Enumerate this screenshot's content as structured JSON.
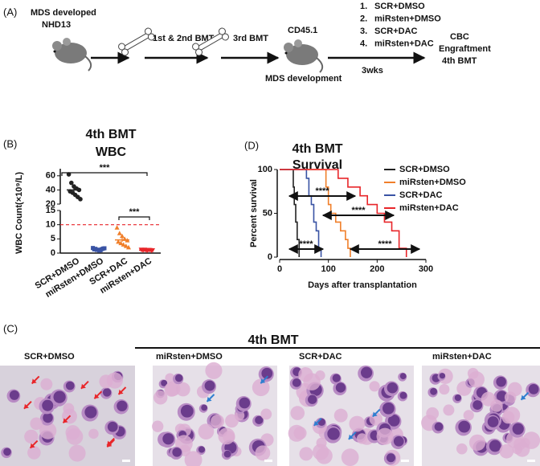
{
  "panel_a": {
    "label": "(A)",
    "donor": [
      "MDS developed",
      "NHD13"
    ],
    "step1": "1st & 2nd BMT",
    "step2": "3rd BMT",
    "recipient": "CD45.1",
    "recipient_note": "MDS development",
    "treatments": [
      {
        "number": "1.",
        "name": "SCR+DMSO"
      },
      {
        "number": "2.",
        "name": "miRsten+DMSO"
      },
      {
        "number": "3.",
        "name": "SCR+DAC"
      },
      {
        "number": "4.",
        "name": "miRsten+DAC"
      }
    ],
    "duration": "3wks",
    "readouts": [
      "CBC",
      "Engraftment",
      "4th BMT"
    ]
  },
  "chart_data": [
    {
      "type": "dot",
      "label": "(B)",
      "title": "4th BMT",
      "subtitle": "WBC",
      "y_label": "WBC Count(×10⁹/L)",
      "categories": [
        "SCR+DMSO",
        "miRsten+DMSO",
        "SCR+DAC",
        "miRsten+DAC"
      ],
      "colors": [
        "#222222",
        "#3953a4",
        "#f07f2a",
        "#e8262a"
      ],
      "values": [
        [
          62,
          50,
          45,
          42,
          40,
          38,
          36,
          33,
          30,
          27
        ],
        [
          1.8,
          1.5,
          1.2,
          1.0,
          1.6,
          1.3,
          1.1,
          0.9,
          1.4,
          1.7
        ],
        [
          9,
          7,
          6,
          5,
          4.5,
          4,
          3.5,
          3,
          2.5,
          2
        ],
        [
          1.2,
          1.0,
          0.9,
          1.1,
          0.8,
          1.0,
          1.2,
          0.9,
          1.1,
          1.0
        ]
      ],
      "means": [
        40,
        1.35,
        4.65,
        1.02
      ],
      "sems": [
        3.3,
        0.1,
        0.7,
        0.05
      ],
      "ylim_lower": [
        0,
        15
      ],
      "ylim_upper": [
        20,
        70
      ],
      "yticks": [
        0,
        5,
        10,
        15,
        20,
        40,
        60
      ],
      "threshold": 10,
      "threshold_color": "#e8262a",
      "annotations": [
        "***",
        "***"
      ]
    },
    {
      "type": "survival",
      "label": "(D)",
      "title": "4th BMT",
      "subtitle": "Survival",
      "x_label": "Days after transplantation",
      "y_label": "Percent survival",
      "xlim": [
        0,
        300
      ],
      "xticks": [
        0,
        100,
        200,
        300
      ],
      "ylim": [
        0,
        100
      ],
      "yticks": [
        0,
        50,
        100
      ],
      "legend": "upper right",
      "series": [
        {
          "name": "SCR+DMSO",
          "color": "#222222",
          "x": [
            0,
            28,
            30,
            33,
            36,
            40
          ],
          "values": [
            100,
            80,
            60,
            40,
            20,
            0
          ]
        },
        {
          "name": "miRsten+DMSO",
          "color": "#f07f2a",
          "x": [
            0,
            95,
            100,
            105,
            115,
            125,
            135,
            140,
            145
          ],
          "values": [
            100,
            80,
            60,
            50,
            40,
            30,
            20,
            10,
            0
          ]
        },
        {
          "name": "SCR+DAC",
          "color": "#3953a4",
          "x": [
            0,
            55,
            60,
            65,
            70,
            75,
            80,
            85
          ],
          "values": [
            100,
            90,
            70,
            60,
            40,
            30,
            10,
            0
          ]
        },
        {
          "name": "miRsten+DAC",
          "color": "#e8262a",
          "x": [
            0,
            120,
            140,
            165,
            180,
            200,
            215,
            230,
            245,
            260
          ],
          "values": [
            100,
            90,
            80,
            70,
            60,
            50,
            40,
            30,
            10,
            0
          ]
        }
      ],
      "annotations": [
        "****",
        "****",
        "****",
        "****"
      ]
    }
  ],
  "panel_c": {
    "label": "(C)",
    "title": "4th BMT",
    "images": [
      {
        "label": "SCR+DMSO",
        "arrow_color": "#e8262a"
      },
      {
        "label": "miRsten+DMSO",
        "arrow_color": "#2f7fd0"
      },
      {
        "label": "SCR+DAC",
        "arrow_color": "#2f7fd0"
      },
      {
        "label": "miRsten+DAC",
        "arrow_color": "#2f7fd0"
      }
    ]
  }
}
